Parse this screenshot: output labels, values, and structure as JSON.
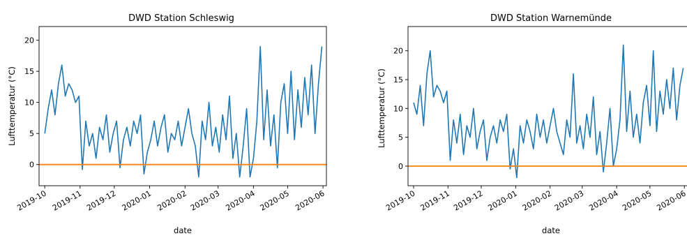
{
  "chart_data": [
    {
      "type": "line",
      "title": "DWD Station Schleswig",
      "xlabel": "date",
      "ylabel": "Lufttemperatur (°C)",
      "xlim": [
        "2019-09-26",
        "2020-06-04"
      ],
      "ylim": [
        -3.4,
        22.2
      ],
      "xticks": [
        "2019-10",
        "2019-11",
        "2019-12",
        "2020-01",
        "2020-02",
        "2020-03",
        "2020-04",
        "2020-05",
        "2020-06"
      ],
      "yticks": [
        0,
        5,
        10,
        15,
        20
      ],
      "grid": false,
      "series": [
        {
          "color": "#1f77b4",
          "x": [
            "2019-10-01",
            "2019-10-04",
            "2019-10-07",
            "2019-10-10",
            "2019-10-13",
            "2019-10-16",
            "2019-10-19",
            "2019-10-22",
            "2019-10-25",
            "2019-10-28",
            "2019-10-31",
            "2019-11-03",
            "2019-11-06",
            "2019-11-09",
            "2019-11-12",
            "2019-11-15",
            "2019-11-18",
            "2019-11-21",
            "2019-11-24",
            "2019-11-27",
            "2019-11-30",
            "2019-12-03",
            "2019-12-06",
            "2019-12-09",
            "2019-12-12",
            "2019-12-15",
            "2019-12-18",
            "2019-12-21",
            "2019-12-24",
            "2019-12-27",
            "2019-12-30",
            "2020-01-02",
            "2020-01-05",
            "2020-01-08",
            "2020-01-11",
            "2020-01-14",
            "2020-01-17",
            "2020-01-20",
            "2020-01-23",
            "2020-01-26",
            "2020-01-29",
            "2020-02-01",
            "2020-02-04",
            "2020-02-07",
            "2020-02-10",
            "2020-02-13",
            "2020-02-16",
            "2020-02-19",
            "2020-02-22",
            "2020-02-25",
            "2020-02-28",
            "2020-03-02",
            "2020-03-05",
            "2020-03-08",
            "2020-03-11",
            "2020-03-14",
            "2020-03-17",
            "2020-03-20",
            "2020-03-23",
            "2020-03-26",
            "2020-03-29",
            "2020-04-01",
            "2020-04-04",
            "2020-04-07",
            "2020-04-10",
            "2020-04-13",
            "2020-04-16",
            "2020-04-19",
            "2020-04-22",
            "2020-04-25",
            "2020-04-28",
            "2020-05-01",
            "2020-05-04",
            "2020-05-07",
            "2020-05-10",
            "2020-05-13",
            "2020-05-16",
            "2020-05-19",
            "2020-05-22",
            "2020-05-25",
            "2020-05-28",
            "2020-05-31"
          ],
          "y": [
            5,
            9,
            12,
            8,
            13,
            16,
            11,
            13,
            12,
            10,
            11,
            -0.8,
            7,
            3,
            5,
            1,
            6,
            4,
            8,
            2,
            5,
            7,
            -0.5,
            4,
            6,
            3,
            7,
            5,
            8,
            -1.5,
            2,
            4,
            7,
            3,
            6,
            8,
            2,
            5,
            4,
            7,
            3,
            6,
            9,
            5,
            3,
            -2,
            7,
            4,
            10,
            3,
            6,
            2,
            8,
            4,
            11,
            1,
            5,
            -2,
            3,
            9,
            -2,
            1,
            7,
            19,
            4,
            12,
            3,
            8,
            -0.5,
            10,
            13,
            5,
            15,
            4,
            12,
            6,
            14,
            8,
            16,
            5,
            13,
            19
          ]
        }
      ],
      "hlines": [
        {
          "y": 0,
          "color": "#ff7f0e"
        }
      ]
    },
    {
      "type": "line",
      "title": "DWD Station Warnemünde",
      "xlabel": "date",
      "ylabel": "Lufttemperatur (°C)",
      "xlim": [
        "2019-09-26",
        "2020-06-04"
      ],
      "ylim": [
        -3.4,
        24.2
      ],
      "xticks": [
        "2019-10",
        "2019-11",
        "2019-12",
        "2020-01",
        "2020-02",
        "2020-03",
        "2020-04",
        "2020-05",
        "2020-06"
      ],
      "yticks": [
        0,
        5,
        10,
        15,
        20
      ],
      "grid": false,
      "series": [
        {
          "color": "#1f77b4",
          "x": [
            "2019-10-01",
            "2019-10-04",
            "2019-10-07",
            "2019-10-10",
            "2019-10-13",
            "2019-10-16",
            "2019-10-19",
            "2019-10-22",
            "2019-10-25",
            "2019-10-28",
            "2019-10-31",
            "2019-11-03",
            "2019-11-06",
            "2019-11-09",
            "2019-11-12",
            "2019-11-15",
            "2019-11-18",
            "2019-11-21",
            "2019-11-24",
            "2019-11-27",
            "2019-11-30",
            "2019-12-03",
            "2019-12-06",
            "2019-12-09",
            "2019-12-12",
            "2019-12-15",
            "2019-12-18",
            "2019-12-21",
            "2019-12-24",
            "2019-12-27",
            "2019-12-30",
            "2020-01-02",
            "2020-01-05",
            "2020-01-08",
            "2020-01-11",
            "2020-01-14",
            "2020-01-17",
            "2020-01-20",
            "2020-01-23",
            "2020-01-26",
            "2020-01-29",
            "2020-02-01",
            "2020-02-04",
            "2020-02-07",
            "2020-02-10",
            "2020-02-13",
            "2020-02-16",
            "2020-02-19",
            "2020-02-22",
            "2020-02-25",
            "2020-02-28",
            "2020-03-02",
            "2020-03-05",
            "2020-03-08",
            "2020-03-11",
            "2020-03-14",
            "2020-03-17",
            "2020-03-20",
            "2020-03-23",
            "2020-03-26",
            "2020-03-29",
            "2020-04-01",
            "2020-04-04",
            "2020-04-07",
            "2020-04-10",
            "2020-04-13",
            "2020-04-16",
            "2020-04-19",
            "2020-04-22",
            "2020-04-25",
            "2020-04-28",
            "2020-05-01",
            "2020-05-04",
            "2020-05-07",
            "2020-05-10",
            "2020-05-13",
            "2020-05-16",
            "2020-05-19",
            "2020-05-22",
            "2020-05-25",
            "2020-05-28",
            "2020-05-31"
          ],
          "y": [
            11,
            9,
            14,
            7,
            16,
            20,
            12,
            14,
            13,
            11,
            13,
            1,
            8,
            4,
            9,
            2,
            7,
            5,
            10,
            3,
            6,
            8,
            1,
            5,
            7,
            4,
            8,
            6,
            9,
            -0.5,
            3,
            -2,
            7,
            4,
            8,
            6,
            3,
            9,
            5,
            8,
            4,
            7,
            10,
            6,
            4,
            2,
            8,
            5,
            16,
            4,
            7,
            3,
            9,
            5,
            12,
            2,
            6,
            -1,
            4,
            10,
            0,
            3,
            8,
            21,
            6,
            13,
            5,
            9,
            4,
            11,
            14,
            7,
            20,
            6,
            13,
            9,
            15,
            10,
            17,
            8,
            14,
            17
          ]
        }
      ],
      "hlines": [
        {
          "y": 0,
          "color": "#ff7f0e"
        }
      ]
    }
  ]
}
